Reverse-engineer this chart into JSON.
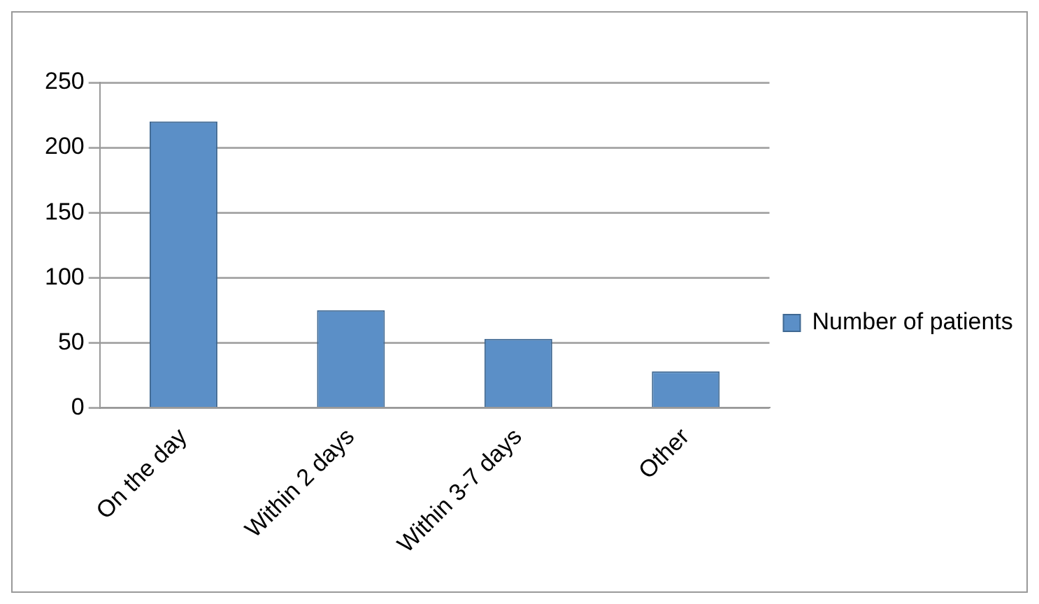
{
  "chart_data": {
    "type": "bar",
    "categories": [
      "On the day",
      "Within 2 days",
      "Within 3-7 days",
      "Other"
    ],
    "series": [
      {
        "name": "Number of patients",
        "color": "#5b8fc7",
        "values": [
          220,
          75,
          53,
          28
        ]
      }
    ],
    "ylim": [
      0,
      250
    ],
    "yticks": [
      0,
      50,
      100,
      150,
      200,
      250
    ],
    "grid": "y",
    "legend": "right"
  }
}
